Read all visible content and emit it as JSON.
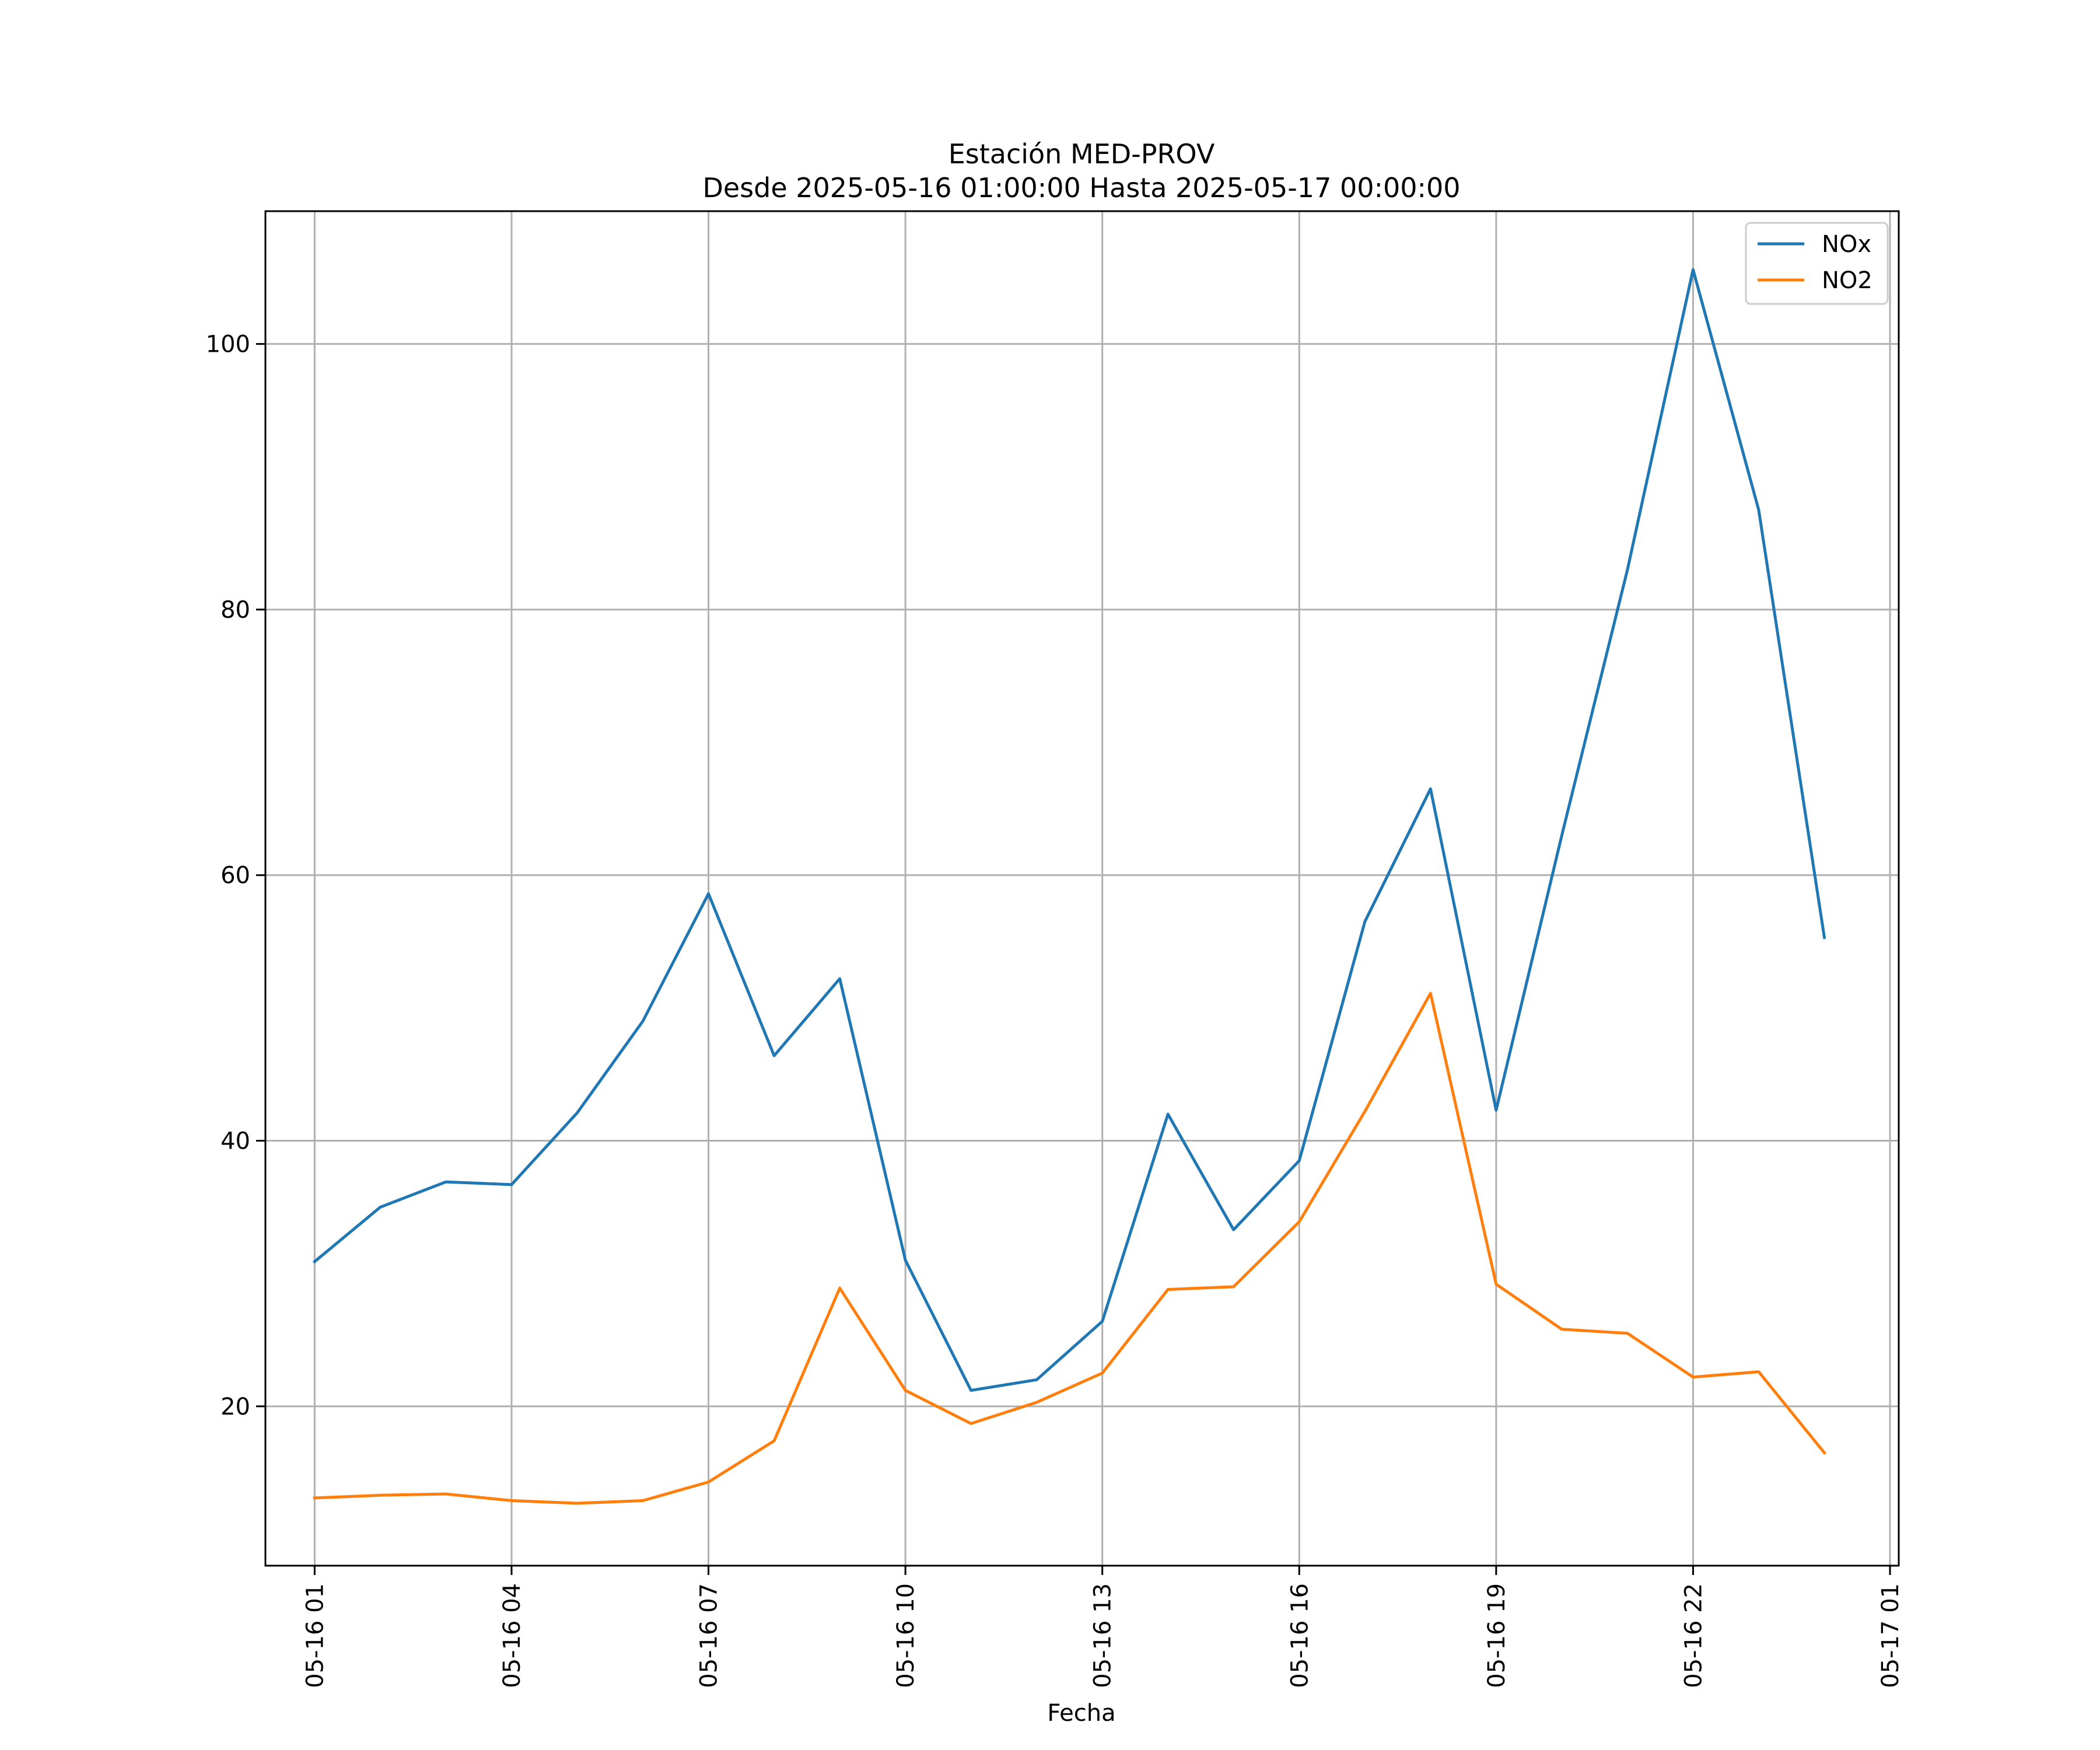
{
  "chart_data": {
    "type": "line",
    "title": "Estación MED-PROV",
    "subtitle": "Desde 2025-05-16 01:00:00 Hasta 2025-05-17 00:00:00",
    "xlabel": "Fecha",
    "ylabel": "",
    "x": [
      "2025-05-16 01:00",
      "2025-05-16 02:00",
      "2025-05-16 03:00",
      "2025-05-16 04:00",
      "2025-05-16 05:00",
      "2025-05-16 06:00",
      "2025-05-16 07:00",
      "2025-05-16 08:00",
      "2025-05-16 09:00",
      "2025-05-16 10:00",
      "2025-05-16 11:00",
      "2025-05-16 12:00",
      "2025-05-16 13:00",
      "2025-05-16 14:00",
      "2025-05-16 15:00",
      "2025-05-16 16:00",
      "2025-05-16 17:00",
      "2025-05-16 18:00",
      "2025-05-16 19:00",
      "2025-05-16 20:00",
      "2025-05-16 21:00",
      "2025-05-16 22:00",
      "2025-05-16 23:00",
      "2025-05-17 00:00"
    ],
    "series": [
      {
        "name": "NOx",
        "color": "#1f77b4",
        "values": [
          30.9,
          35.0,
          36.9,
          36.7,
          42.1,
          49.0,
          58.6,
          46.4,
          52.2,
          31.0,
          21.2,
          22.0,
          26.4,
          42.0,
          33.3,
          38.5,
          56.5,
          66.5,
          42.3,
          63.0,
          83.0,
          105.6,
          87.5,
          55.3
        ]
      },
      {
        "name": "NO2",
        "color": "#ff7f0e",
        "values": [
          13.1,
          13.3,
          13.4,
          12.9,
          12.7,
          12.9,
          14.3,
          17.4,
          28.9,
          21.2,
          18.7,
          20.3,
          22.5,
          28.8,
          29.0,
          33.9,
          42.2,
          51.1,
          29.2,
          25.8,
          25.5,
          22.2,
          22.6,
          16.5
        ]
      }
    ],
    "xticks": [
      "05-16 01",
      "05-16 04",
      "05-16 07",
      "05-16 10",
      "05-16 13",
      "05-16 16",
      "05-16 19",
      "05-16 22",
      "05-17 01"
    ],
    "yticks": [
      20,
      40,
      60,
      80,
      100
    ],
    "ylim": [
      8,
      110
    ],
    "xlim": [
      "2025-05-16 00:15",
      "2025-05-17 01:08"
    ],
    "grid": true,
    "legend_position": "top-right"
  }
}
